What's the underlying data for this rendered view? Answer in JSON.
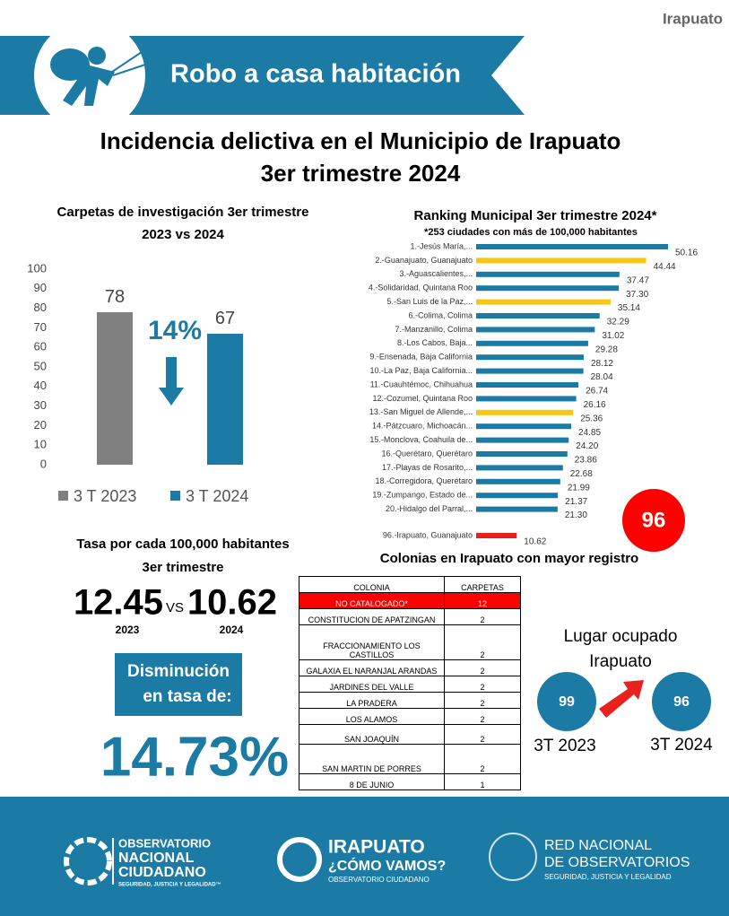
{
  "header": {
    "city": "Irapuato",
    "banner": "Robo a casa habitación",
    "title_line1": "Incidencia delictiva en el Municipio de Irapuato",
    "title_line2": "3er trimestre 2024"
  },
  "chart_data": [
    {
      "type": "bar",
      "title_line1": "Carpetas de investigación 3er trimestre",
      "title_line2": "2023 vs 2024",
      "series": [
        {
          "name": "3 T 2023",
          "color": "#808080",
          "values": [
            78
          ]
        },
        {
          "name": "3 T 2024",
          "color": "#1b7ba5",
          "values": [
            67
          ]
        }
      ],
      "ylim": [
        0,
        100
      ],
      "yticks": [
        0,
        10,
        20,
        30,
        40,
        50,
        60,
        70,
        80,
        90,
        100
      ],
      "grid": false,
      "annotation": "14%"
    },
    {
      "type": "hbar",
      "title": "Ranking Municipal 3er trimestre 2024*",
      "subtitle": "*253 ciudades con más de 100,000 habitantes",
      "categories": [
        "1.-Jesús María,...",
        "2.-Guanajuato, Guanajuato",
        "3.-Aguascalientes,...",
        "4.-Solidaridad, Quintana Roo",
        "5.-San Luis de la Paz,...",
        "6.-Colima, Colima",
        "7.-Manzanillo, Colima",
        "8.-Los Cabos, Baja...",
        "9.-Ensenada, Baja California",
        "10.-La Paz, Baja California...",
        "11.-Cuauhtémoc, Chihuahua",
        "12.-Cozumel, Quintana Roo",
        "13.-San Miguel de Allende,...",
        "14.-Pátzcuaro, Michoacán...",
        "15.-Monclova, Coahuila de...",
        "16.-Querétaro, Querétaro",
        "17.-Playas de Rosarito,...",
        "18.-Corregidora, Querétaro",
        "19.-Zumpango, Estado de...",
        "20.-Hidalgo del Parral,...",
        "96.-Irapuato, Guanajuato"
      ],
      "values": [
        50.16,
        44.44,
        37.47,
        37.3,
        35.14,
        32.29,
        31.02,
        29.28,
        28.12,
        28.04,
        26.74,
        26.16,
        25.36,
        24.85,
        24.2,
        23.86,
        22.68,
        21.99,
        21.37,
        21.3,
        10.62
      ],
      "value_labels": [
        "50.16",
        "44.44",
        "37.47",
        "37.30",
        "35.14",
        "32.29",
        "31.02",
        "29.28",
        "28.12",
        "28.04",
        "26.74",
        "26.16",
        "25.36",
        "24.85",
        "24.20",
        "23.86",
        "22.68",
        "21.99",
        "21.37",
        "21.30",
        "10.62"
      ],
      "colors": [
        "#1b7ba5",
        "#f5c518",
        "#1b7ba5",
        "#1b7ba5",
        "#f5c518",
        "#1b7ba5",
        "#1b7ba5",
        "#1b7ba5",
        "#1b7ba5",
        "#1b7ba5",
        "#1b7ba5",
        "#1b7ba5",
        "#f5c518",
        "#1b7ba5",
        "#1b7ba5",
        "#1b7ba5",
        "#1b7ba5",
        "#1b7ba5",
        "#1b7ba5",
        "#1b7ba5",
        "#e8211d"
      ],
      "badge": "96"
    }
  ],
  "rate": {
    "title": "Tasa por cada 100,000 habitantes",
    "subtitle": "3er trimestre",
    "value_2023": "12.45",
    "vs": "VS",
    "value_2024": "10.62",
    "year_2023": "2023",
    "year_2024": "2024",
    "box_line1": "Disminución",
    "box_line2": "en tasa de:",
    "decrease": "14.73%"
  },
  "table": {
    "title": "Colonias en Irapuato con mayor registro",
    "header": [
      "COLONIA",
      "CARPETAS"
    ],
    "rows": [
      [
        "NO CATALOGADO*",
        "12"
      ],
      [
        "CONSTITUCION DE APATZINGAN",
        "2"
      ],
      [
        "FRACCIONAMIENTO LOS CASTILLOS",
        "2"
      ],
      [
        "GALAXIA EL NARANJAL ARANDAS",
        "2"
      ],
      [
        "JARDINES DEL VALLE",
        "2"
      ],
      [
        "LA PRADERA",
        "2"
      ],
      [
        "LOS ALAMOS",
        "2"
      ],
      [
        "SAN JOAQUÍN",
        "2"
      ],
      [
        "SAN MARTIN DE PORRES",
        "2"
      ],
      [
        "8 DE JUNIO",
        "1"
      ]
    ]
  },
  "ranking_place": {
    "title_line1": "Lugar ocupado",
    "title_line2": "Irapuato",
    "rank_2023": "99",
    "rank_2024": "96",
    "label_2023": "3T 2023",
    "label_2024": "3T 2024"
  },
  "footer": {
    "onc_line1": "OBSERVATORIO",
    "onc_line2": "NACIONAL",
    "onc_line3": "CIUDADANO",
    "onc_tagline": "SEGURIDAD, JUSTICIA Y LEGALIDAD™",
    "icv_line1": "IRAPUATO",
    "icv_line2": "¿CÓMO VAMOS?",
    "icv_tagline": "OBSERVATORIO CIUDADANO",
    "rno_line1": "RED NACIONAL",
    "rno_line2": "DE OBSERVATORIOS",
    "rno_tagline": "SEGURIDAD, JUSTICIA Y LEGALIDAD"
  }
}
